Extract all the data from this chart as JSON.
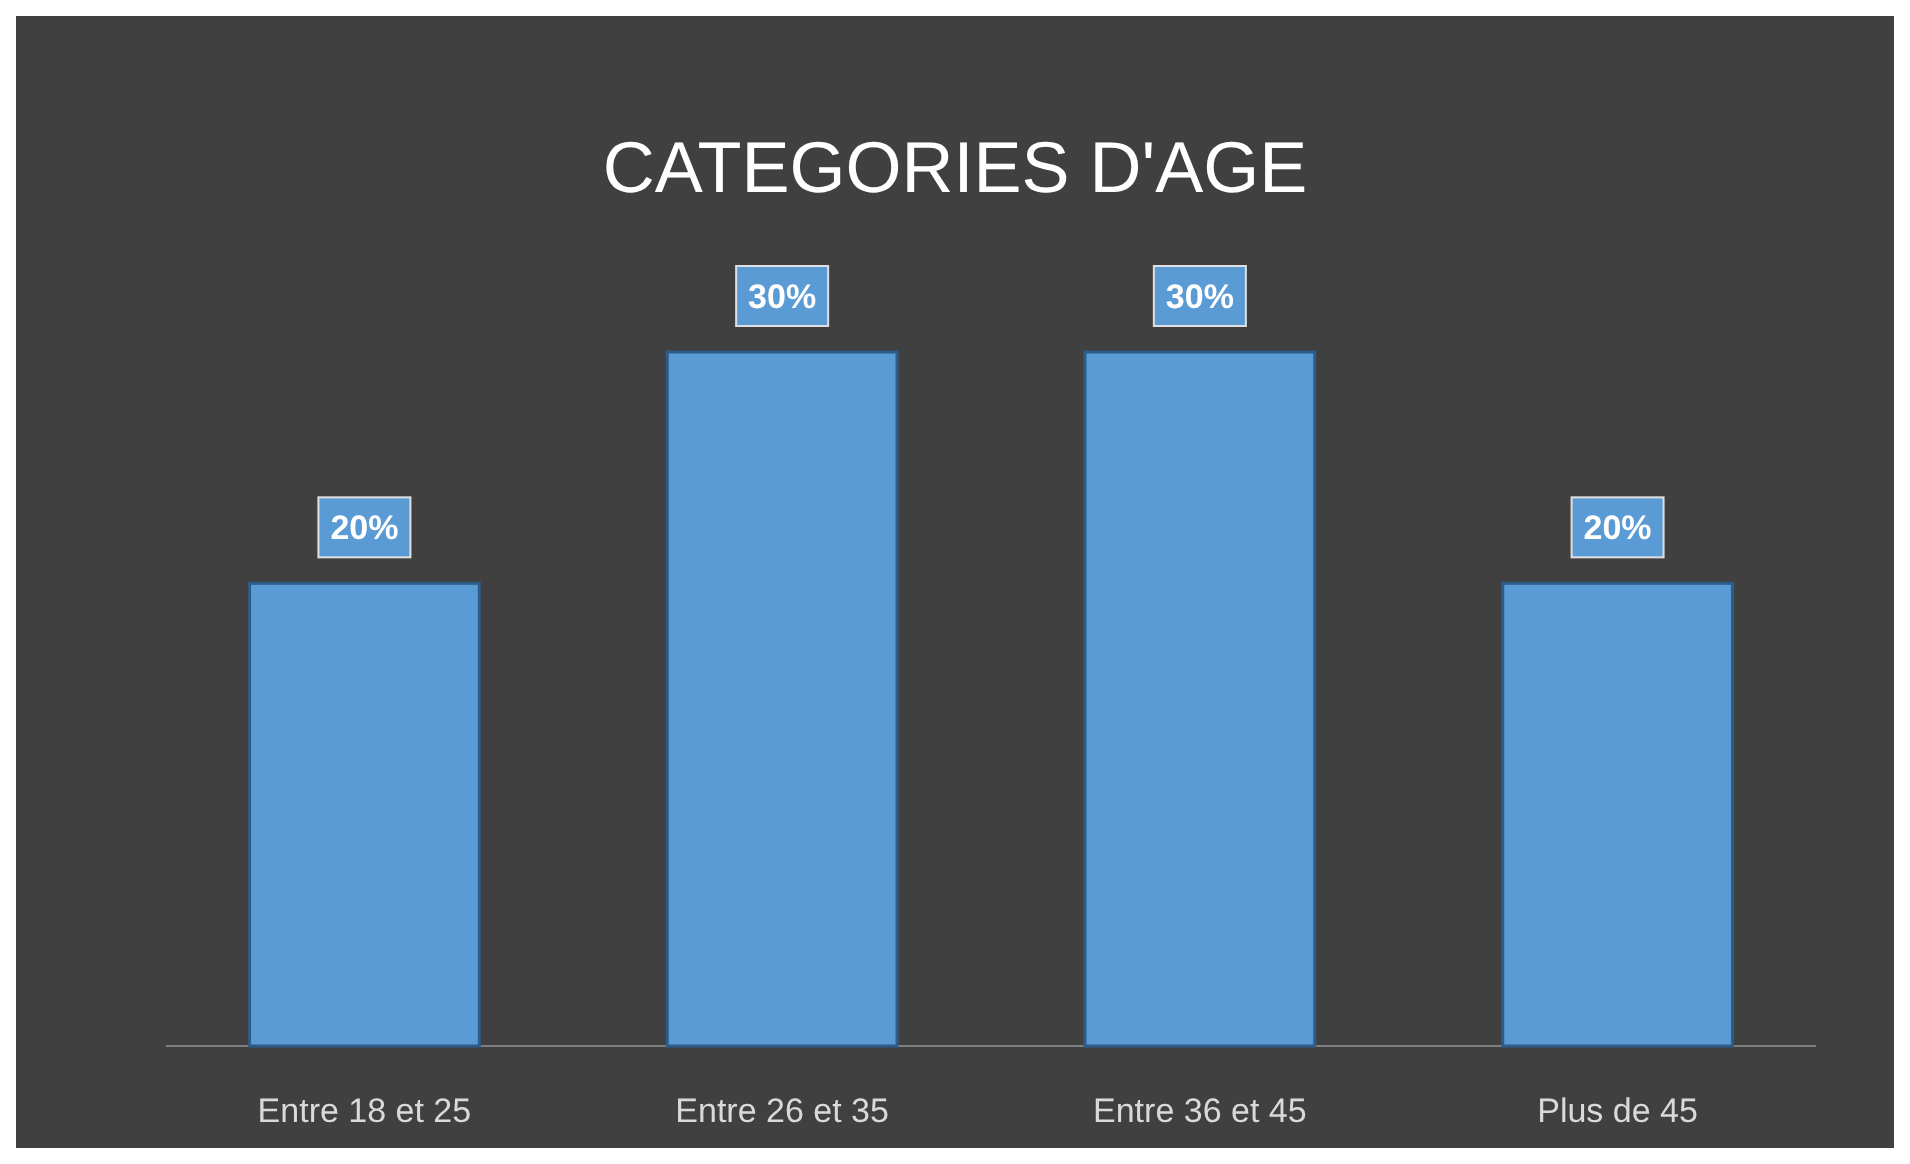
{
  "chart_data": {
    "type": "bar",
    "title": "CATEGORIES D'AGE",
    "categories": [
      "Entre 18 et 25",
      "Entre 26 et 35",
      "Entre 36 et 45",
      "Plus de 45"
    ],
    "values": [
      20,
      30,
      30,
      20
    ],
    "value_labels": [
      "20%",
      "30%",
      "30%",
      "20%"
    ],
    "color": "#5b9bd5"
  }
}
